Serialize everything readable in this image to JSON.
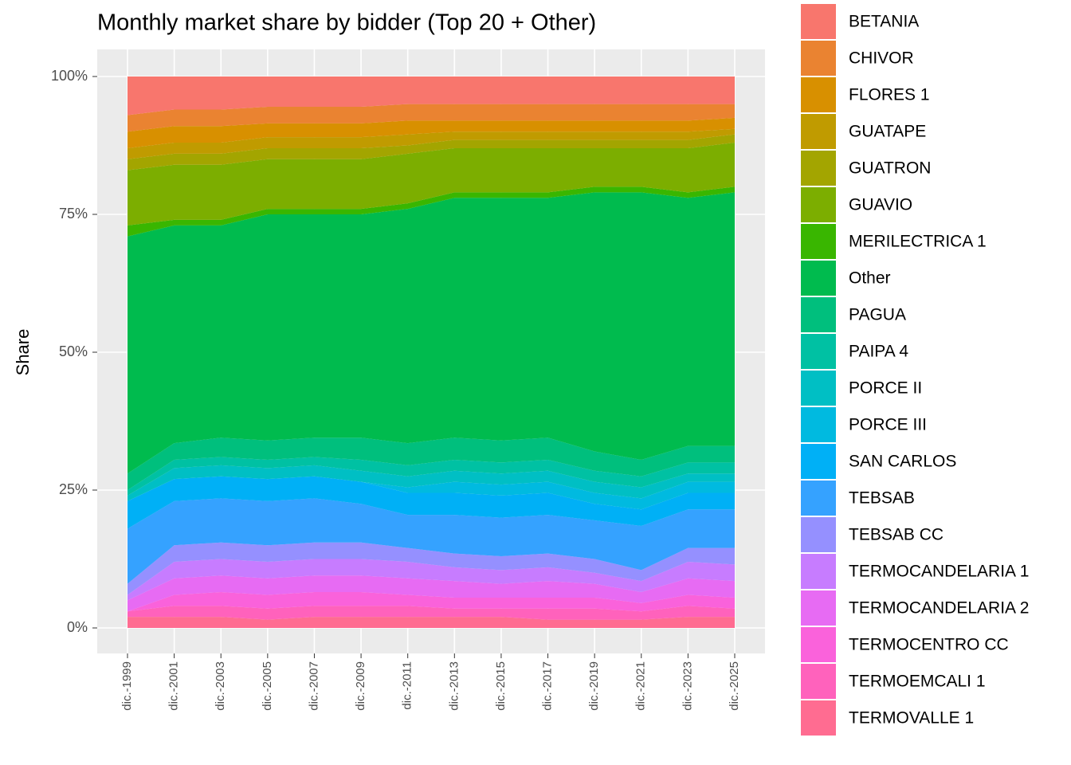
{
  "chart_data": {
    "type": "stacked_area",
    "title": "Monthly market share by bidder (Top 20 + Other)",
    "y_label": "Share",
    "categories": [
      "dic.-1999",
      "dic.-2001",
      "dic.-2003",
      "dic.-2005",
      "dic.-2007",
      "dic.-2009",
      "dic.-2011",
      "dic.-2013",
      "dic.-2015",
      "dic.-2017",
      "dic.-2019",
      "dic.-2021",
      "dic.-2023",
      "dic.-2025"
    ],
    "ylim": [
      0,
      100
    ],
    "yticks": [
      {
        "value": 0,
        "label": "0%"
      },
      {
        "value": 25,
        "label": "25%"
      },
      {
        "value": 50,
        "label": "50%"
      },
      {
        "value": 75,
        "label": "75%"
      },
      {
        "value": 100,
        "label": "100%"
      }
    ],
    "grid": true,
    "series": [
      {
        "name": "BETANIA",
        "color": "#F8766D",
        "values": [
          7,
          6,
          6,
          5.5,
          5.5,
          5.5,
          5,
          5,
          5,
          5,
          5,
          5,
          5,
          5
        ]
      },
      {
        "name": "CHIVOR",
        "color": "#EA8331",
        "values": [
          3,
          3,
          3,
          3,
          3,
          3,
          3,
          3,
          3,
          3,
          3,
          3,
          3,
          2.5
        ]
      },
      {
        "name": "FLORES 1",
        "color": "#D89000",
        "values": [
          3,
          3,
          3,
          2.5,
          2.5,
          2.5,
          2.5,
          2,
          2,
          2,
          2,
          2,
          2,
          2
        ]
      },
      {
        "name": "GUATAPE",
        "color": "#C09B00",
        "values": [
          2,
          2,
          2,
          2,
          2,
          2,
          2,
          1.5,
          1.5,
          1.5,
          1.5,
          1.5,
          1.5,
          1
        ]
      },
      {
        "name": "GUATRON",
        "color": "#A3A500",
        "values": [
          2,
          2,
          2,
          2,
          2,
          2,
          1.5,
          1.5,
          1.5,
          1.5,
          1.5,
          1.5,
          1.5,
          1.5
        ]
      },
      {
        "name": "GUAVIO",
        "color": "#7CAE00",
        "values": [
          10,
          10,
          10,
          9,
          9,
          9,
          9,
          8,
          8,
          8,
          7,
          7,
          8,
          8
        ]
      },
      {
        "name": "MERILECTRICA 1",
        "color": "#39B600",
        "values": [
          2,
          1,
          1,
          1,
          1,
          1,
          1,
          1,
          1,
          1,
          1,
          1,
          1,
          1
        ]
      },
      {
        "name": "Other",
        "color": "#00BB4E",
        "values": [
          43,
          39.5,
          38.5,
          41,
          40.5,
          40.5,
          42.5,
          43.5,
          44,
          43.5,
          47,
          48.5,
          45,
          46
        ]
      },
      {
        "name": "PAGUA",
        "color": "#00BF7D",
        "values": [
          3,
          3,
          3.5,
          3.5,
          3.5,
          4,
          4,
          4,
          4,
          4,
          3.5,
          3,
          3,
          3
        ]
      },
      {
        "name": "PAIPA 4",
        "color": "#00C1A3",
        "values": [
          1,
          1.5,
          1.5,
          1.5,
          1.5,
          2,
          2,
          2,
          2,
          2,
          2,
          2,
          2,
          2
        ]
      },
      {
        "name": "PORCE II",
        "color": "#00BFC4",
        "values": [
          1,
          2,
          2,
          2,
          2,
          2,
          2,
          2,
          2,
          2,
          2,
          2,
          1.5,
          1.5
        ]
      },
      {
        "name": "PORCE III",
        "color": "#00BAE0",
        "values": [
          0,
          0,
          0,
          0,
          0,
          0,
          1,
          2,
          2,
          2,
          2,
          2,
          2,
          2
        ]
      },
      {
        "name": "SAN CARLOS",
        "color": "#00B0F6",
        "values": [
          5,
          4,
          4,
          4,
          4,
          4,
          4,
          4,
          4,
          4,
          3,
          3,
          3,
          3
        ]
      },
      {
        "name": "TEBSAB",
        "color": "#35A2FF",
        "values": [
          10,
          8,
          8,
          8,
          8,
          7,
          6,
          7,
          7,
          7,
          7,
          8,
          7,
          7
        ]
      },
      {
        "name": "TEBSAB CC",
        "color": "#9590FF",
        "values": [
          2,
          3,
          3,
          3,
          3,
          3,
          2.5,
          2.5,
          2.5,
          2.5,
          2.5,
          2,
          2.5,
          3
        ]
      },
      {
        "name": "TERMOCANDELARIA 1",
        "color": "#C77CFF",
        "values": [
          1,
          3,
          3,
          3,
          3,
          3,
          3,
          2.5,
          2.5,
          2.5,
          2,
          2,
          3,
          3
        ]
      },
      {
        "name": "TERMOCANDELARIA 2",
        "color": "#E76BF3",
        "values": [
          2,
          3,
          3,
          3,
          3,
          3,
          3,
          3,
          2.5,
          3,
          2.5,
          2,
          3,
          3
        ]
      },
      {
        "name": "TERMOCENTRO CC",
        "color": "#FA62DB",
        "values": [
          0,
          2,
          2.5,
          2.5,
          2.5,
          2.5,
          2,
          2,
          2,
          2,
          2,
          1.5,
          2,
          2
        ]
      },
      {
        "name": "TERMOEMCALI 1",
        "color": "#FF62BC",
        "values": [
          1,
          2,
          2,
          2,
          2,
          2,
          2,
          1.5,
          1.5,
          2,
          2,
          1.5,
          2,
          1.5
        ]
      },
      {
        "name": "TERMOVALLE 1",
        "color": "#FF6C91",
        "values": [
          2,
          2,
          2,
          1.5,
          2,
          2,
          2,
          2,
          2,
          1.5,
          1.5,
          1.5,
          2,
          2
        ]
      }
    ]
  }
}
